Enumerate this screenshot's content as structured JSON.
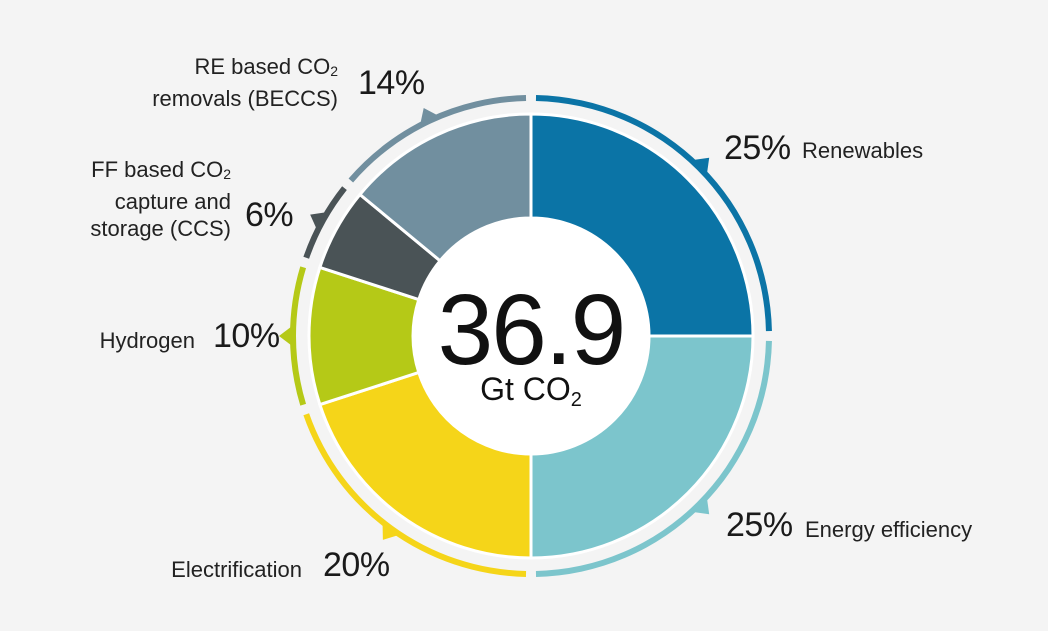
{
  "chart_data": {
    "type": "pie",
    "center_value": "36.9",
    "center_unit": "Gt CO",
    "center_unit_sub": "2",
    "slices": [
      {
        "name_lines": [
          "Renewables"
        ],
        "value": 25,
        "value_label": "25%",
        "color": "#0b74a6"
      },
      {
        "name_lines": [
          "Energy efficiency"
        ],
        "value": 25,
        "value_label": "25%",
        "color": "#7cc5cc"
      },
      {
        "name_lines": [
          "Electrification"
        ],
        "value": 20,
        "value_label": "20%",
        "color": "#f5d519"
      },
      {
        "name_lines": [
          "Hydrogen"
        ],
        "value": 10,
        "value_label": "10%",
        "color": "#b5c917"
      },
      {
        "name_lines": [
          "FF based CO",
          "capture and",
          "storage (CCS)"
        ],
        "name_sub": "2",
        "value": 6,
        "value_label": "6%",
        "color": "#4a5356"
      },
      {
        "name_lines": [
          "RE based CO",
          "removals (BECCS)"
        ],
        "name_sub": "2",
        "value": 14,
        "value_label": "14%",
        "color": "#718f9f"
      }
    ]
  }
}
